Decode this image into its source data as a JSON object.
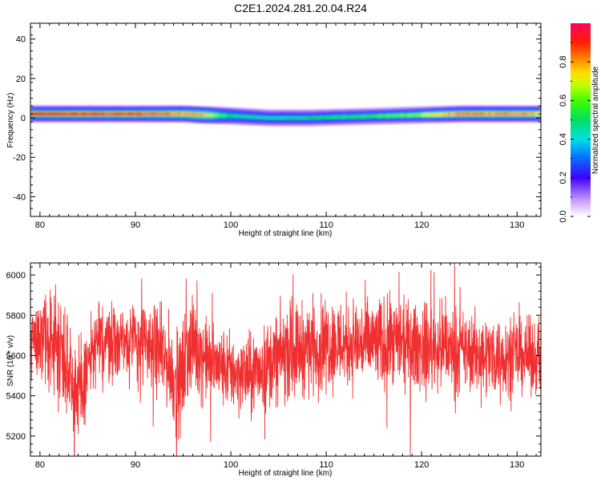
{
  "title": "C2E1.2024.281.20.04.R24",
  "chart_data": [
    {
      "type": "heatmap",
      "xlabel": "Height of straight line (km)",
      "ylabel": "Frequency (Hz)",
      "xlim": [
        79,
        132.5
      ],
      "ylim": [
        -50,
        48
      ],
      "xticks": [
        80,
        90,
        100,
        110,
        120,
        130
      ],
      "yticks": [
        -40,
        -20,
        0,
        20,
        40
      ],
      "colorbar": {
        "label": "Normalized spectral amplitude",
        "range": [
          0,
          1
        ],
        "ticks": [
          "0.0",
          "0.2",
          "0.4",
          "0.6",
          "0.8"
        ],
        "tick_values": [
          0,
          0.2,
          0.4,
          0.6,
          0.8
        ]
      },
      "ridge": {
        "x": [
          79.5,
          85,
          90,
          95,
          97,
          100,
          104,
          108,
          112,
          116,
          120,
          124,
          128,
          132.5
        ],
        "freq_center": [
          2,
          2,
          2,
          2,
          1.5,
          1,
          0,
          0,
          0.5,
          1,
          1.5,
          2,
          2,
          2
        ],
        "peak_amplitude": [
          0.95,
          0.92,
          0.9,
          0.85,
          0.8,
          0.5,
          0.45,
          0.5,
          0.55,
          0.6,
          0.7,
          0.85,
          0.85,
          0.8
        ],
        "halo_amplitude": [
          0.2,
          0.2,
          0.2,
          0.22,
          0.25,
          0.18,
          0.15,
          0.15,
          0.15,
          0.15,
          0.17,
          0.2,
          0.2,
          0.2
        ]
      }
    },
    {
      "type": "line",
      "xlabel": "Height of straight line (km)",
      "ylabel": "SNR (10 * v/v)",
      "xlim": [
        79,
        132.5
      ],
      "ylim": [
        5100,
        6060
      ],
      "xticks": [
        80,
        90,
        100,
        110,
        120,
        130
      ],
      "yticks": [
        5200,
        5400,
        5600,
        5800,
        6000
      ],
      "color": "#f03030",
      "series": {
        "x": [
          79,
          80,
          81,
          82,
          82.5,
          83,
          83.5,
          84,
          84.5,
          85,
          86,
          88,
          90,
          92,
          93.5,
          94.5,
          95,
          95.5,
          96,
          97,
          98,
          100,
          102,
          104,
          106,
          108,
          110,
          112,
          114,
          116,
          118,
          120,
          122,
          124,
          126,
          128,
          130,
          132.5
        ],
        "mean": [
          5700,
          5690,
          5660,
          5650,
          5620,
          5560,
          5480,
          5380,
          5440,
          5560,
          5660,
          5680,
          5670,
          5640,
          5560,
          5420,
          5520,
          5620,
          5660,
          5600,
          5560,
          5520,
          5500,
          5560,
          5620,
          5640,
          5660,
          5660,
          5660,
          5660,
          5650,
          5640,
          5640,
          5620,
          5610,
          5600,
          5600,
          5590
        ],
        "spread": [
          120,
          130,
          140,
          170,
          180,
          180,
          160,
          170,
          160,
          130,
          120,
          120,
          120,
          130,
          140,
          150,
          160,
          150,
          140,
          130,
          120,
          120,
          120,
          130,
          140,
          140,
          140,
          140,
          140,
          140,
          130,
          130,
          130,
          120,
          120,
          120,
          110,
          110
        ]
      }
    }
  ]
}
